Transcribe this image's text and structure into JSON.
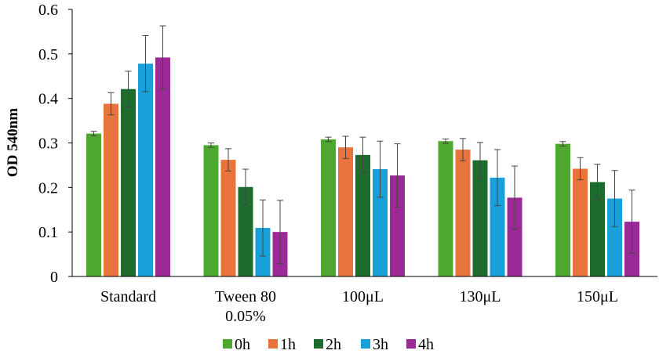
{
  "chart_data": {
    "type": "bar",
    "title": "",
    "xlabel": "",
    "ylabel": "OD 540nm",
    "ylim": [
      0,
      0.6
    ],
    "yticks": [
      "0",
      "0.1",
      "0.2",
      "0.3",
      "0.4",
      "0.5",
      "0.6"
    ],
    "categories": [
      [
        "Standard"
      ],
      [
        "Tween 80",
        "0.05%"
      ],
      [
        "100μL"
      ],
      [
        "130μL"
      ],
      [
        "150μL"
      ]
    ],
    "series": [
      {
        "name": "0h",
        "color": "#4ea72e",
        "values": [
          0.321,
          0.295,
          0.308,
          0.304,
          0.298
        ],
        "errors": [
          0.005,
          0.005,
          0.005,
          0.005,
          0.005
        ]
      },
      {
        "name": "1h",
        "color": "#e8743b",
        "values": [
          0.388,
          0.262,
          0.29,
          0.285,
          0.242
        ],
        "errors": [
          0.025,
          0.025,
          0.025,
          0.025,
          0.025
        ]
      },
      {
        "name": "2h",
        "color": "#1e6b2e",
        "values": [
          0.421,
          0.201,
          0.273,
          0.261,
          0.212
        ],
        "errors": [
          0.04,
          0.04,
          0.04,
          0.04,
          0.04
        ]
      },
      {
        "name": "3h",
        "color": "#1aa0d8",
        "values": [
          0.478,
          0.109,
          0.241,
          0.222,
          0.175
        ],
        "errors": [
          0.063,
          0.063,
          0.063,
          0.063,
          0.063
        ]
      },
      {
        "name": "4h",
        "color": "#9c2a96",
        "values": [
          0.492,
          0.1,
          0.227,
          0.177,
          0.123
        ],
        "errors": [
          0.071,
          0.071,
          0.071,
          0.071,
          0.071
        ]
      }
    ],
    "legend_position": "bottom",
    "grid": false
  }
}
